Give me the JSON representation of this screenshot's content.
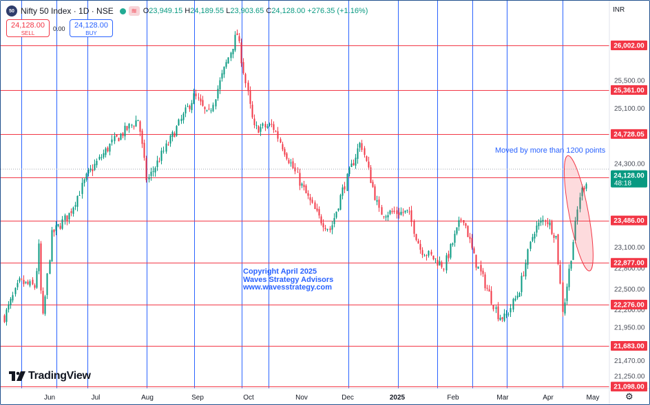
{
  "header": {
    "symbol_badge": "50",
    "title": "Nifty 50 Index · 1D · NSE",
    "wave_glyph": "≋",
    "open_key": "O",
    "open": "23,949.15",
    "high_key": "H",
    "high": "24,189.55",
    "low_key": "L",
    "low": "23,903.65",
    "close_key": "C",
    "close": "24,128.00",
    "change": "+276.35 (+1.16%)"
  },
  "trade": {
    "sell_price": "24,128.00",
    "sell_label": "SELL",
    "spread": "0.00",
    "buy_price": "24,128.00",
    "buy_label": "BUY"
  },
  "currency": "INR",
  "logo": {
    "mark": "17",
    "text": "TradingView"
  },
  "annotations": {
    "copyright_lines": [
      "Copyright April 2025",
      "Waves Strategy Advisors",
      "www.wavesstrategy.com"
    ],
    "note": "Moved by more than 1200 points"
  },
  "colors": {
    "up": "#089981",
    "down": "#f23645",
    "hline": "#f23645",
    "vline": "#2962ff",
    "text": "#131722",
    "accent": "#2962ff"
  },
  "chart_data": {
    "type": "candlestick",
    "symbol": "Nifty 50 Index",
    "interval": "1D",
    "y_range": [
      21000,
      26500
    ],
    "axis_ticks": [
      {
        "label": "25,500.00",
        "value": 25500
      },
      {
        "label": "25,100.00",
        "value": 25100
      },
      {
        "label": "24,300.00",
        "value": 24300
      },
      {
        "label": "23,100.00",
        "value": 23100
      },
      {
        "label": "22,800.00",
        "value": 22800
      },
      {
        "label": "22,500.00",
        "value": 22500
      },
      {
        "label": "22,200.00",
        "value": 22200
      },
      {
        "label": "21,950.00",
        "value": 21950
      },
      {
        "label": "21,470.00",
        "value": 21470
      },
      {
        "label": "21,250.00",
        "value": 21250
      }
    ],
    "horizontal_levels": [
      {
        "label": "26,002.00",
        "value": 26002
      },
      {
        "label": "25,361.00",
        "value": 25361
      },
      {
        "label": "24,728.05",
        "value": 24728.05
      },
      {
        "label": "24,103.00",
        "value": 24103
      },
      {
        "label": "23,486.00",
        "value": 23486
      },
      {
        "label": "22,877.00",
        "value": 22877
      },
      {
        "label": "22,276.00",
        "value": 22276
      },
      {
        "label": "21,683.00",
        "value": 21683
      },
      {
        "label": "21,098.00",
        "value": 21098
      }
    ],
    "last_price": {
      "label": "24,128.00",
      "value": 24128,
      "countdown": "48:18"
    },
    "time_labels": [
      "Jun",
      "Jul",
      "Aug",
      "Sep",
      "Oct",
      "Nov",
      "Dec",
      "2025",
      "Feb",
      "Mar",
      "Apr",
      "May"
    ],
    "vertical_markers": [
      "2024-05-23",
      "2024-06-13",
      "2024-07-01",
      "2024-08-05",
      "2024-09-02",
      "2024-09-30",
      "2024-10-16",
      "2024-12-02",
      "2024-12-31",
      "2025-01-23",
      "2025-02-13",
      "2025-03-05",
      "2025-04-07"
    ],
    "price_path": [
      [
        "2024-05-13",
        22100
      ],
      [
        "2024-05-22",
        22600
      ],
      [
        "2024-05-31",
        22530
      ],
      [
        "2024-06-03",
        23260
      ],
      [
        "2024-06-04",
        21884
      ],
      [
        "2024-06-10",
        23290
      ],
      [
        "2024-06-20",
        23570
      ],
      [
        "2024-07-01",
        24140
      ],
      [
        "2024-07-15",
        24590
      ],
      [
        "2024-07-31",
        24950
      ],
      [
        "2024-08-05",
        24050
      ],
      [
        "2024-08-20",
        24700
      ],
      [
        "2024-09-02",
        25280
      ],
      [
        "2024-09-10",
        24980
      ],
      [
        "2024-09-27",
        26180
      ],
      [
        "2024-10-07",
        24800
      ],
      [
        "2024-10-18",
        24850
      ],
      [
        "2024-11-04",
        23990
      ],
      [
        "2024-11-14",
        23530
      ],
      [
        "2024-11-21",
        23350
      ],
      [
        "2024-11-28",
        23900
      ],
      [
        "2024-12-09",
        24620
      ],
      [
        "2024-12-20",
        23600
      ],
      [
        "2025-01-06",
        23600
      ],
      [
        "2025-01-13",
        23080
      ],
      [
        "2025-01-27",
        22830
      ],
      [
        "2025-02-07",
        23560
      ],
      [
        "2025-02-14",
        22930
      ],
      [
        "2025-02-28",
        22120
      ],
      [
        "2025-03-04",
        22080
      ],
      [
        "2025-03-12",
        22460
      ],
      [
        "2025-03-21",
        23350
      ],
      [
        "2025-03-28",
        23520
      ],
      [
        "2025-04-03",
        23250
      ],
      [
        "2025-04-07",
        22160
      ],
      [
        "2025-04-11",
        22830
      ],
      [
        "2025-04-17",
        23850
      ],
      [
        "2025-04-22",
        24130
      ]
    ],
    "highlight_ellipse": {
      "from": "2025-04-11",
      "to": "2025-04-22",
      "low": 22877,
      "high": 24300
    }
  }
}
